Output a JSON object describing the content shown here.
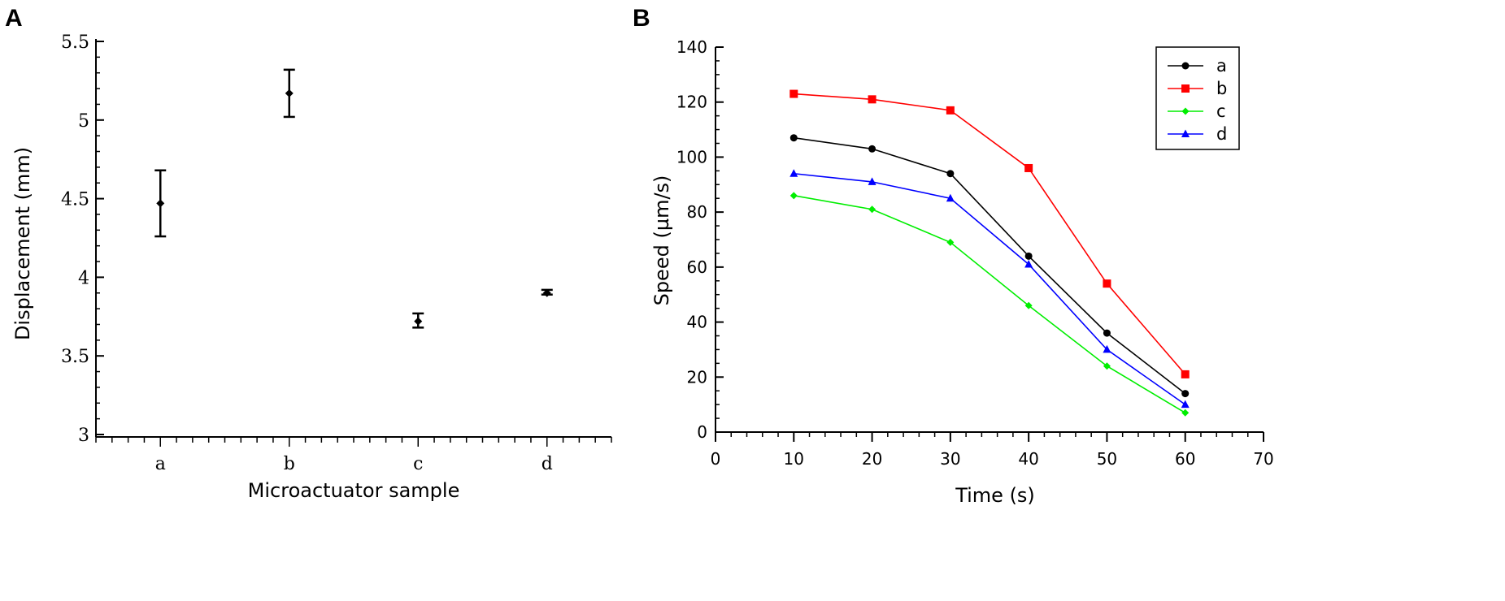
{
  "chart_data": [
    {
      "panel_label": "A",
      "type": "scatter",
      "title": "",
      "xlabel": "Microactuator sample",
      "ylabel": "Displacement (mm)",
      "categories": [
        "a",
        "b",
        "c",
        "d"
      ],
      "values": [
        4.47,
        5.17,
        3.72,
        3.9
      ],
      "error_low": [
        4.26,
        5.02,
        3.68,
        3.89
      ],
      "error_high": [
        4.68,
        5.32,
        3.77,
        3.92
      ],
      "ylim": [
        3,
        5.5
      ],
      "yticks": [
        "3",
        "3.5",
        "4",
        "4.5",
        "5",
        "5.5"
      ],
      "grid": false
    },
    {
      "panel_label": "B",
      "type": "line",
      "title": "",
      "xlabel": "Time (s)",
      "ylabel": "Speed (µm/s)",
      "x": [
        10,
        20,
        30,
        40,
        50,
        60
      ],
      "xlim": [
        0,
        70
      ],
      "ylim": [
        0,
        140
      ],
      "xticks": [
        "0",
        "10",
        "20",
        "30",
        "40",
        "50",
        "60",
        "70"
      ],
      "yticks": [
        "0",
        "20",
        "40",
        "60",
        "80",
        "100",
        "120",
        "140"
      ],
      "legend_position": "top-right",
      "grid": false,
      "series": [
        {
          "name": "a",
          "color": "#000000",
          "marker": "circle",
          "values": [
            107,
            103,
            94,
            64,
            36,
            14
          ]
        },
        {
          "name": "b",
          "color": "#ff0000",
          "marker": "square",
          "values": [
            123,
            121,
            117,
            96,
            54,
            21
          ]
        },
        {
          "name": "c",
          "color": "#00ee00",
          "marker": "diamond",
          "values": [
            86,
            81,
            69,
            46,
            24,
            7
          ]
        },
        {
          "name": "d",
          "color": "#0000ff",
          "marker": "triangle",
          "values": [
            94,
            91,
            85,
            61,
            30,
            10
          ]
        }
      ]
    }
  ]
}
